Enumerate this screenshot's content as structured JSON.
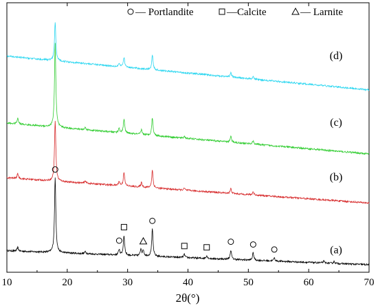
{
  "chart_data": {
    "type": "line",
    "title": "",
    "xlabel": "2θ(°)",
    "ylabel": "",
    "xlim": [
      10,
      70
    ],
    "x_ticks": [
      10,
      20,
      30,
      40,
      50,
      60,
      70
    ],
    "y_ticks_shown": false,
    "grid": false,
    "legend_position": "top-right",
    "legend": [
      {
        "symbol": "circle",
        "label": "— Portlandite"
      },
      {
        "symbol": "square",
        "label": "—Calcite"
      },
      {
        "symbol": "triangle",
        "label": "— Larnite"
      }
    ],
    "series": [
      {
        "name": "(a)",
        "color": "#000000",
        "baseline": 0.02,
        "slope": -0.0005,
        "noise": 0.018,
        "peaks": [
          [
            11.8,
            0.08
          ],
          [
            18.0,
            1.6
          ],
          [
            23.0,
            0.05
          ],
          [
            28.6,
            0.12
          ],
          [
            29.4,
            0.42
          ],
          [
            32.2,
            0.15
          ],
          [
            32.6,
            0.12
          ],
          [
            34.1,
            0.58
          ],
          [
            39.4,
            0.07
          ],
          [
            43.1,
            0.06
          ],
          [
            47.1,
            0.2
          ],
          [
            50.8,
            0.16
          ],
          [
            54.3,
            0.07
          ],
          [
            62.5,
            0.04
          ],
          [
            64.2,
            0.04
          ]
        ],
        "markers": [
          {
            "x": 18.0,
            "symbol": "circle"
          },
          {
            "x": 28.6,
            "symbol": "circle"
          },
          {
            "x": 29.4,
            "symbol": "square"
          },
          {
            "x": 32.6,
            "symbol": "triangle"
          },
          {
            "x": 34.1,
            "symbol": "circle"
          },
          {
            "x": 39.4,
            "symbol": "square"
          },
          {
            "x": 43.1,
            "symbol": "square"
          },
          {
            "x": 47.1,
            "symbol": "circle"
          },
          {
            "x": 50.8,
            "symbol": "circle"
          },
          {
            "x": 54.3,
            "symbol": "circle"
          }
        ]
      },
      {
        "name": "(b)",
        "color": "#d62728",
        "baseline": 1.58,
        "slope": -0.0009,
        "noise": 0.018,
        "peaks": [
          [
            11.8,
            0.1
          ],
          [
            18.0,
            1.3
          ],
          [
            23.0,
            0.05
          ],
          [
            28.6,
            0.09
          ],
          [
            29.4,
            0.3
          ],
          [
            32.3,
            0.1
          ],
          [
            34.1,
            0.38
          ],
          [
            39.4,
            0.04
          ],
          [
            47.1,
            0.1
          ],
          [
            50.8,
            0.07
          ]
        ],
        "markers": []
      },
      {
        "name": "(c)",
        "color": "#2ecc2e",
        "baseline": 2.75,
        "slope": -0.0011,
        "noise": 0.018,
        "peaks": [
          [
            11.8,
            0.12
          ],
          [
            18.0,
            1.8
          ],
          [
            23.0,
            0.05
          ],
          [
            28.6,
            0.09
          ],
          [
            29.4,
            0.3
          ],
          [
            32.3,
            0.1
          ],
          [
            34.1,
            0.38
          ],
          [
            39.4,
            0.04
          ],
          [
            47.1,
            0.12
          ],
          [
            50.8,
            0.07
          ]
        ],
        "markers": []
      },
      {
        "name": "(d)",
        "color": "#29d6f0",
        "baseline": 4.18,
        "slope": -0.0012,
        "noise": 0.018,
        "peaks": [
          [
            18.0,
            0.82
          ],
          [
            28.6,
            0.07
          ],
          [
            29.4,
            0.21
          ],
          [
            34.1,
            0.32
          ],
          [
            47.1,
            0.1
          ],
          [
            50.8,
            0.05
          ]
        ],
        "markers": []
      }
    ]
  }
}
